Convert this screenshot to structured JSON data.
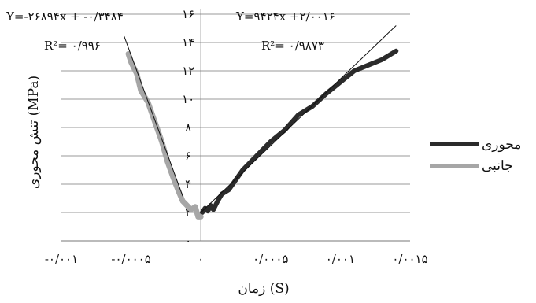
{
  "chart_data": {
    "type": "line",
    "xlabel": "زمان (S)",
    "ylabel": "تنش محوری (MPa)",
    "xlim": [
      -0.001,
      0.0015
    ],
    "ylim": [
      0,
      16
    ],
    "x_ticks": [
      {
        "value": -0.001,
        "label": "-۰/۰۰۱"
      },
      {
        "value": -0.0005,
        "label": "-۰/۰۰۰۵"
      },
      {
        "value": 0,
        "label": "۰"
      },
      {
        "value": 0.0005,
        "label": "۰/۰۰۰۵"
      },
      {
        "value": 0.001,
        "label": "۰/۰۰۱"
      },
      {
        "value": 0.0015,
        "label": "۰/۰۰۱۵"
      }
    ],
    "y_ticks": [
      {
        "value": 0,
        "label": "۰"
      },
      {
        "value": 2,
        "label": "۲"
      },
      {
        "value": 4,
        "label": "۴"
      },
      {
        "value": 6,
        "label": "۶"
      },
      {
        "value": 8,
        "label": "۸"
      },
      {
        "value": 10,
        "label": "۱۰"
      },
      {
        "value": 12,
        "label": "۱۲"
      },
      {
        "value": 14,
        "label": "۱۴"
      },
      {
        "value": 16,
        "label": "۱۶"
      }
    ],
    "grid": "horizontal",
    "legend_position": "right",
    "series": [
      {
        "name": "محوری",
        "color": "#2b2b2b",
        "x": [
          1e-05,
          3e-05,
          5e-05,
          7e-05,
          9e-05,
          0.00012,
          0.00015,
          0.0002,
          0.00025,
          0.0003,
          0.0004,
          0.0005,
          0.0006,
          0.0007,
          0.0008,
          0.0009,
          0.001,
          0.0011,
          0.0012,
          0.0013,
          0.0014
        ],
        "y": [
          2.0,
          2.3,
          2.1,
          2.5,
          2.2,
          2.8,
          3.3,
          3.6,
          4.3,
          5.0,
          6.0,
          7.0,
          7.8,
          8.9,
          9.5,
          10.4,
          11.2,
          12.0,
          12.4,
          12.8,
          13.4
        ]
      },
      {
        "name": "جانبی",
        "color": "#a6a6a6",
        "x": [
          -0.00052,
          -0.0005,
          -0.00046,
          -0.00043,
          -0.00038,
          -0.00033,
          -0.00028,
          -0.00024,
          -0.0002,
          -0.00016,
          -0.00013,
          -0.0001,
          -7e-05,
          -4e-05,
          -2e-05,
          0.0
        ],
        "y": [
          13.2,
          12.6,
          11.8,
          10.6,
          9.8,
          8.4,
          7.0,
          5.6,
          4.5,
          3.5,
          2.8,
          2.5,
          2.2,
          2.4,
          1.7,
          1.7
        ]
      }
    ],
    "trendlines": [
      {
        "series": "محوری",
        "slope": 9424,
        "intercept": 2.0016,
        "x_range": [
          0,
          0.0014
        ]
      },
      {
        "series": "جانبی",
        "slope": -26894,
        "intercept": -0.3484,
        "x_range": [
          -0.00055,
          -0.00013
        ]
      }
    ],
    "annotations": [
      {
        "id": "eq_lateral",
        "text": "Y=-۲۶۸۹۴x + -۰/۳۴۸۴"
      },
      {
        "id": "r2_lateral",
        "text": "R²= ۰/۹۹۶"
      },
      {
        "id": "eq_axial",
        "text": "Y=۹۴۲۴x +۲/۰۰۱۶"
      },
      {
        "id": "r2_axial",
        "text": "R²= ۰/۹۸۷۳"
      }
    ]
  }
}
